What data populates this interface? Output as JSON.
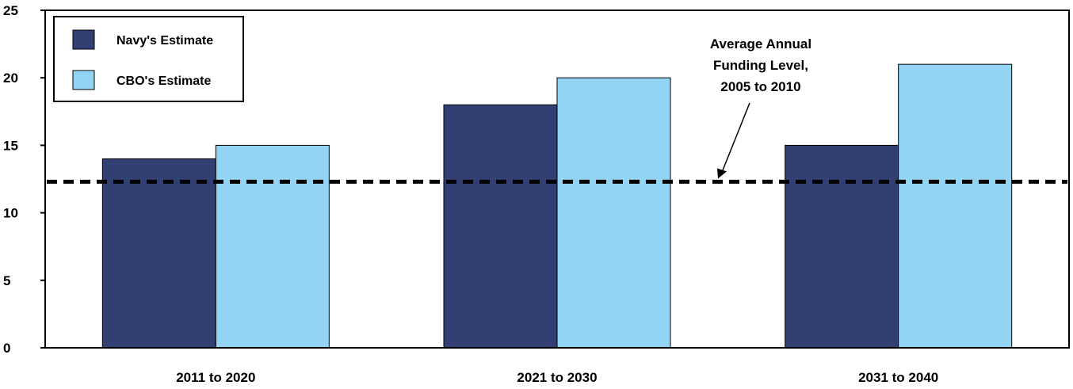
{
  "chart_data": {
    "type": "bar",
    "categories": [
      "2011 to 2020",
      "2021 to 2030",
      "2031 to 2040"
    ],
    "series": [
      {
        "name": "Navy's Estimate",
        "values": [
          14,
          18,
          15
        ],
        "color": "#323f73"
      },
      {
        "name": "CBO's Estimate",
        "values": [
          15,
          20,
          21
        ],
        "color": "#93d3f3"
      }
    ],
    "ylim": [
      0,
      25
    ],
    "yticks": [
      0,
      5,
      10,
      15,
      20,
      25
    ],
    "reference_line": {
      "value": 12.3,
      "style": "dashed",
      "label_lines": [
        "Average Annual",
        "Funding Level,",
        "2005 to 2010"
      ]
    },
    "legend_position": "top-left",
    "grid": false
  }
}
